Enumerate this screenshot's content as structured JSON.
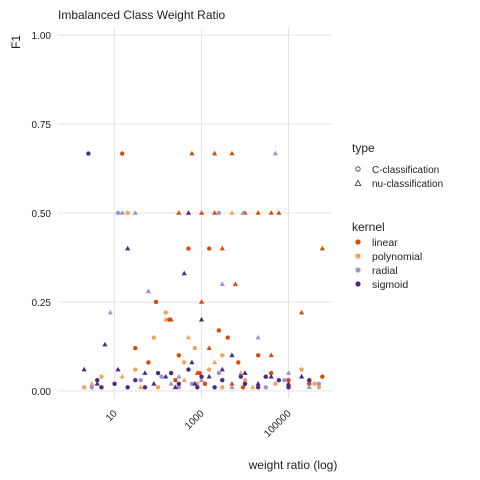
{
  "chart_data": {
    "type": "scatter",
    "title": "Imbalanced Class Weight Ratio",
    "xlabel": "weight ratio (log)",
    "ylabel": "F1",
    "x_scale": "log10",
    "xlim": [
      0.5,
      1000000
    ],
    "ylim": [
      -0.02,
      1.02
    ],
    "x_ticks": [
      {
        "value": 10,
        "label": "10"
      },
      {
        "value": 1000,
        "label": "1000"
      },
      {
        "value": 100000,
        "label": "100000"
      }
    ],
    "y_ticks": [
      {
        "value": 0.0,
        "label": "0.00"
      },
      {
        "value": 0.25,
        "label": "0.25"
      },
      {
        "value": 0.5,
        "label": "0.50"
      },
      {
        "value": 0.75,
        "label": "0.75"
      },
      {
        "value": 1.0,
        "label": "1.00"
      }
    ],
    "grid": true,
    "legend_position": "right",
    "legends": {
      "type": {
        "title": "type",
        "items": [
          {
            "label": "C-classification",
            "shape": "circle"
          },
          {
            "label": "nu-classification",
            "shape": "triangle"
          }
        ]
      },
      "kernel": {
        "title": "kernel",
        "items": [
          {
            "label": "linear",
            "color": "#d94a0b"
          },
          {
            "label": "polynomial",
            "color": "#f5a25a"
          },
          {
            "label": "radial",
            "color": "#9f94ce"
          },
          {
            "label": "sigmoid",
            "color": "#4d2b83"
          }
        ]
      }
    },
    "series": [
      {
        "kernel": "linear",
        "type": "C-classification",
        "points": [
          [
            15,
            0.667
          ],
          [
            90,
            0.25
          ],
          [
            180,
            0.2
          ],
          [
            300,
            0.1
          ],
          [
            500,
            0.4
          ],
          [
            900,
            0.05
          ],
          [
            1500,
            0.4
          ],
          [
            2500,
            0.17
          ],
          [
            4000,
            0.15
          ],
          [
            7000,
            0.08
          ],
          [
            20000,
            0.1
          ],
          [
            40000,
            0.05
          ],
          [
            100000,
            0.03
          ],
          [
            300000,
            0.02
          ],
          [
            600000,
            0.04
          ],
          [
            30,
            0.12
          ],
          [
            60,
            0.08
          ],
          [
            250,
            0.03
          ],
          [
            1200,
            0.02
          ],
          [
            9000,
            0.01
          ]
        ]
      },
      {
        "kernel": "linear",
        "type": "nu-classification",
        "points": [
          [
            600,
            0.667
          ],
          [
            2000,
            0.667
          ],
          [
            5000,
            0.667
          ],
          [
            300,
            0.5
          ],
          [
            1000,
            0.5
          ],
          [
            2000,
            0.5
          ],
          [
            10000,
            0.5
          ],
          [
            20000,
            0.5
          ],
          [
            40000,
            0.5
          ],
          [
            60000,
            0.5
          ],
          [
            3000,
            0.4
          ],
          [
            600000,
            0.4
          ],
          [
            6000,
            0.3
          ],
          [
            1000,
            0.25
          ],
          [
            200000,
            0.22
          ],
          [
            200,
            0.2
          ],
          [
            1500,
            0.12
          ],
          [
            800,
            0.05
          ],
          [
            40000,
            0.1
          ],
          [
            5000,
            0.02
          ]
        ]
      },
      {
        "kernel": "polynomial",
        "type": "C-classification",
        "points": [
          [
            20,
            0.5
          ],
          [
            2,
            0.01
          ],
          [
            5,
            0.04
          ],
          [
            30,
            0.06
          ],
          [
            80,
            0.15
          ],
          [
            150,
            0.22
          ],
          [
            400,
            0.08
          ],
          [
            700,
            0.12
          ],
          [
            1500,
            0.06
          ],
          [
            3000,
            0.1
          ],
          [
            10000,
            0.03
          ],
          [
            50000,
            0.02
          ],
          [
            200000,
            0.06
          ],
          [
            500000,
            0.01
          ],
          [
            100,
            0.01
          ],
          [
            800,
            0.02
          ],
          [
            3000,
            0.01
          ],
          [
            400000,
            0.02
          ]
        ]
      },
      {
        "kernel": "polynomial",
        "type": "nu-classification",
        "points": [
          [
            5000,
            0.5
          ],
          [
            60,
            0.28
          ],
          [
            150,
            0.2
          ],
          [
            500,
            0.15
          ],
          [
            2000,
            0.08
          ],
          [
            8000,
            0.05
          ],
          [
            30000,
            0.04
          ],
          [
            100000,
            0.02
          ],
          [
            3,
            0.02
          ],
          [
            15,
            0.04
          ],
          [
            40,
            0.01
          ],
          [
            400,
            0.03
          ],
          [
            15000,
            0.01
          ],
          [
            300000,
            0.03
          ]
        ]
      },
      {
        "kernel": "radial",
        "type": "C-classification",
        "points": [
          [
            12,
            0.5
          ],
          [
            2500,
            0.5
          ],
          [
            40,
            0.03
          ],
          [
            120,
            0.04
          ],
          [
            600,
            0.02
          ],
          [
            2500,
            0.05
          ],
          [
            10000,
            0.02
          ],
          [
            80000,
            0.03
          ],
          [
            3,
            0.01
          ],
          [
            300,
            0.01
          ],
          [
            30000,
            0.01
          ],
          [
            500000,
            0.02
          ]
        ]
      },
      {
        "kernel": "radial",
        "type": "nu-classification",
        "points": [
          [
            50000,
            0.667
          ],
          [
            15,
            0.5
          ],
          [
            30,
            0.5
          ],
          [
            9000,
            0.5
          ],
          [
            8,
            0.22
          ],
          [
            60,
            0.28
          ],
          [
            3000,
            0.3
          ],
          [
            20000,
            0.15
          ],
          [
            100000,
            0.05
          ],
          [
            300,
            0.04
          ],
          [
            1000,
            0.03
          ],
          [
            200,
            0.02
          ],
          [
            5000,
            0.01
          ],
          [
            300000,
            0.01
          ]
        ]
      },
      {
        "kernel": "sigmoid",
        "type": "C-classification",
        "points": [
          [
            2.5,
            0.667
          ],
          [
            10,
            0.02
          ],
          [
            30,
            0.03
          ],
          [
            100,
            0.05
          ],
          [
            300,
            0.02
          ],
          [
            1000,
            0.04
          ],
          [
            3000,
            0.03
          ],
          [
            10000,
            0.02
          ],
          [
            30000,
            0.04
          ],
          [
            100000,
            0.01
          ],
          [
            300000,
            0.03
          ],
          [
            5,
            0.01
          ],
          [
            50,
            0.01
          ],
          [
            500,
            0.06
          ],
          [
            2000,
            0.01
          ],
          [
            20000,
            0.01
          ],
          [
            60000,
            0.03
          ],
          [
            4,
            0.03
          ],
          [
            20,
            0.01
          ],
          [
            200,
            0.05
          ],
          [
            800,
            0.01
          ],
          [
            8000,
            0.04
          ]
        ]
      },
      {
        "kernel": "sigmoid",
        "type": "nu-classification",
        "points": [
          [
            500,
            0.5
          ],
          [
            20,
            0.4
          ],
          [
            400,
            0.33
          ],
          [
            1000,
            0.2
          ],
          [
            6,
            0.13
          ],
          [
            2,
            0.06
          ],
          [
            50,
            0.05
          ],
          [
            150,
            0.04
          ],
          [
            700,
            0.02
          ],
          [
            3000,
            0.06
          ],
          [
            10000,
            0.05
          ],
          [
            40000,
            0.04
          ],
          [
            4,
            0.02
          ],
          [
            12,
            0.06
          ],
          [
            80,
            0.02
          ],
          [
            250,
            0.01
          ],
          [
            1500,
            0.04
          ],
          [
            20000,
            0.02
          ],
          [
            100000,
            0.02
          ],
          [
            200000,
            0.04
          ],
          [
            600,
            0.08
          ],
          [
            5000,
            0.1
          ]
        ]
      }
    ]
  }
}
